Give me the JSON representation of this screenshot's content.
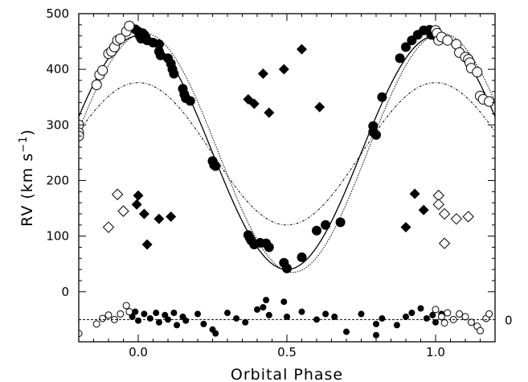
{
  "chart_data": {
    "type": "scatter",
    "title": "",
    "xlabel": "Orbital Phase",
    "ylabel_main": "RV (km s",
    "ylabel_sup": "−1",
    "ylabel_close": ")",
    "xlim": [
      -0.2,
      1.2
    ],
    "ylim": [
      -90,
      500
    ],
    "x_ticks": [
      0.0,
      0.5,
      1.0
    ],
    "x_tick_labels": [
      "0.0",
      "0.5",
      "1.0"
    ],
    "y_ticks": [
      0,
      100,
      200,
      300,
      400,
      500
    ],
    "y_tick_labels": [
      "0",
      "100",
      "200",
      "300",
      "400",
      "500"
    ],
    "residual_zero_level": -50,
    "residual_zero_label": "0",
    "grid": false,
    "legend": "none",
    "models": [
      {
        "role": "primary orbit (solid)",
        "gamma": 250,
        "K": 210,
        "phase_shift": 0.0,
        "style": "solid"
      },
      {
        "role": "primary orbit alternative (dotted)",
        "gamma": 250,
        "K": 215,
        "phase_shift": 0.02,
        "style": "dotted"
      },
      {
        "role": "secondary orbit (dash-dot)",
        "gamma": 248,
        "K": 128,
        "phase_shift": 0.0,
        "style": "dashdot"
      }
    ],
    "series": [
      {
        "marker": "filled-circle",
        "points": [
          [
            -0.01,
            472
          ],
          [
            0.0,
            468
          ],
          [
            0.005,
            460
          ],
          [
            0.01,
            455
          ],
          [
            0.015,
            465
          ],
          [
            0.02,
            462
          ],
          [
            0.025,
            458
          ],
          [
            0.03,
            452
          ],
          [
            0.05,
            448
          ],
          [
            0.07,
            445
          ],
          [
            0.07,
            432
          ],
          [
            0.075,
            425
          ],
          [
            0.1,
            420
          ],
          [
            0.11,
            410
          ],
          [
            0.115,
            400
          ],
          [
            0.12,
            392
          ],
          [
            0.15,
            365
          ],
          [
            0.155,
            355
          ],
          [
            0.16,
            348
          ],
          [
            0.175,
            343
          ],
          [
            0.25,
            235
          ],
          [
            0.255,
            228
          ],
          [
            0.26,
            226
          ],
          [
            0.37,
            102
          ],
          [
            0.375,
            97
          ],
          [
            0.38,
            92
          ],
          [
            0.39,
            85
          ],
          [
            0.41,
            88
          ],
          [
            0.43,
            87
          ],
          [
            0.44,
            80
          ],
          [
            0.49,
            52
          ],
          [
            0.5,
            42
          ],
          [
            0.55,
            62
          ],
          [
            0.6,
            110
          ],
          [
            0.63,
            120
          ],
          [
            0.68,
            125
          ],
          [
            0.79,
            298
          ],
          [
            0.79,
            287
          ],
          [
            0.8,
            282
          ],
          [
            0.82,
            350
          ],
          [
            0.88,
            420
          ],
          [
            0.9,
            440
          ],
          [
            0.92,
            452
          ],
          [
            0.94,
            462
          ],
          [
            0.96,
            470
          ],
          [
            0.98,
            471
          ],
          [
            0.985,
            462
          ],
          [
            1.0,
            460
          ]
        ]
      },
      {
        "marker": "open-circle",
        "points": [
          [
            -0.2,
            300
          ],
          [
            -0.2,
            286
          ],
          [
            -0.2,
            280
          ],
          [
            -0.14,
            372
          ],
          [
            -0.13,
            390
          ],
          [
            -0.12,
            398
          ],
          [
            -0.1,
            428
          ],
          [
            -0.09,
            432
          ],
          [
            -0.08,
            440
          ],
          [
            -0.07,
            452
          ],
          [
            -0.06,
            455
          ],
          [
            -0.04,
            468
          ],
          [
            -0.03,
            478
          ],
          [
            1.0,
            470
          ],
          [
            1.005,
            465
          ],
          [
            1.01,
            452
          ],
          [
            1.02,
            458
          ],
          [
            1.04,
            452
          ],
          [
            1.07,
            445
          ],
          [
            1.08,
            430
          ],
          [
            1.1,
            422
          ],
          [
            1.11,
            418
          ],
          [
            1.115,
            412
          ],
          [
            1.12,
            402
          ],
          [
            1.14,
            395
          ],
          [
            1.15,
            352
          ],
          [
            1.16,
            346
          ],
          [
            1.18,
            342
          ]
        ]
      },
      {
        "marker": "filled-diamond",
        "points": [
          [
            0.0,
            173
          ],
          [
            -0.005,
            157
          ],
          [
            0.02,
            140
          ],
          [
            0.03,
            85
          ],
          [
            0.07,
            131
          ],
          [
            0.11,
            135
          ],
          [
            0.37,
            346
          ],
          [
            0.39,
            338
          ],
          [
            0.42,
            392
          ],
          [
            0.44,
            322
          ],
          [
            0.49,
            400
          ],
          [
            0.55,
            436
          ],
          [
            0.61,
            332
          ],
          [
            0.9,
            116
          ],
          [
            0.93,
            176
          ],
          [
            0.96,
            147
          ]
        ]
      },
      {
        "marker": "open-diamond",
        "points": [
          [
            -0.1,
            116
          ],
          [
            -0.07,
            175
          ],
          [
            -0.05,
            145
          ],
          [
            1.01,
            173
          ],
          [
            1.01,
            157
          ],
          [
            1.03,
            140
          ],
          [
            1.03,
            87
          ],
          [
            1.07,
            131
          ],
          [
            1.11,
            135
          ]
        ]
      },
      {
        "marker": "residual-filled-circle",
        "points": [
          [
            -0.02,
            -45
          ],
          [
            -0.01,
            -36
          ],
          [
            0.0,
            -52
          ],
          [
            0.02,
            -40
          ],
          [
            0.04,
            -48
          ],
          [
            0.06,
            -38
          ],
          [
            0.07,
            -55
          ],
          [
            0.09,
            -42
          ],
          [
            0.1,
            -50
          ],
          [
            0.12,
            -38
          ],
          [
            0.13,
            -60
          ],
          [
            0.15,
            -45
          ],
          [
            0.16,
            -52
          ],
          [
            0.2,
            -40
          ],
          [
            0.22,
            -58
          ],
          [
            0.25,
            -68
          ],
          [
            0.26,
            -75
          ],
          [
            0.3,
            -38
          ],
          [
            0.33,
            -48
          ],
          [
            0.36,
            -55
          ],
          [
            0.4,
            -32
          ],
          [
            0.42,
            -28
          ],
          [
            0.43,
            -15
          ],
          [
            0.44,
            -42
          ],
          [
            0.49,
            -18
          ],
          [
            0.5,
            -45
          ],
          [
            0.55,
            -36
          ],
          [
            0.6,
            -50
          ],
          [
            0.63,
            -40
          ],
          [
            0.66,
            -45
          ],
          [
            0.7,
            -72
          ],
          [
            0.75,
            -40
          ],
          [
            0.8,
            -58
          ],
          [
            0.8,
            -78
          ],
          [
            0.82,
            -48
          ],
          [
            0.87,
            -60
          ],
          [
            0.9,
            -45
          ],
          [
            0.92,
            -38
          ],
          [
            0.95,
            -30
          ],
          [
            0.97,
            -48
          ],
          [
            0.99,
            -42
          ],
          [
            1.0,
            -55
          ],
          [
            1.02,
            -40
          ]
        ]
      },
      {
        "marker": "residual-open-circle",
        "points": [
          [
            -0.2,
            -75
          ],
          [
            -0.14,
            -58
          ],
          [
            -0.12,
            -48
          ],
          [
            -0.1,
            -42
          ],
          [
            -0.08,
            -50
          ],
          [
            -0.06,
            -40
          ],
          [
            -0.04,
            -25
          ],
          [
            -0.03,
            -36
          ],
          [
            1.0,
            -32
          ],
          [
            1.02,
            -45
          ],
          [
            1.03,
            -56
          ],
          [
            1.04,
            -38
          ],
          [
            1.06,
            -50
          ],
          [
            1.08,
            -40
          ],
          [
            1.1,
            -45
          ],
          [
            1.12,
            -55
          ],
          [
            1.14,
            -62
          ],
          [
            1.15,
            -70
          ],
          [
            1.17,
            -48
          ],
          [
            1.18,
            -40
          ]
        ]
      }
    ]
  }
}
